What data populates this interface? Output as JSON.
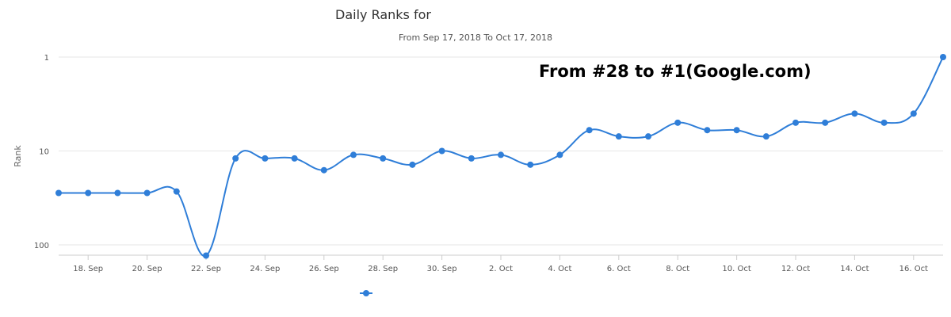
{
  "chart_data": {
    "type": "line",
    "title": "Daily Ranks for",
    "subtitle": "From Sep 17, 2018 To Oct 17, 2018",
    "ylabel": "Rank",
    "xlabel": "",
    "y_scale": "log",
    "y_reversed": true,
    "ylim": [
      1,
      100
    ],
    "y_ticks": [
      "1",
      "10",
      "100"
    ],
    "x_ticks": [
      "18. Sep",
      "20. Sep",
      "22. Sep",
      "24. Sep",
      "26. Sep",
      "28. Sep",
      "30. Sep",
      "2. Oct",
      "4. Oct",
      "6. Oct",
      "8. Oct",
      "10. Oct",
      "12. Oct",
      "14. Oct",
      "16. Oct"
    ],
    "x": [
      "2018-09-17",
      "2018-09-18",
      "2018-09-19",
      "2018-09-20",
      "2018-09-21",
      "2018-09-22",
      "2018-09-23",
      "2018-09-24",
      "2018-09-25",
      "2018-09-26",
      "2018-09-27",
      "2018-09-28",
      "2018-09-29",
      "2018-09-30",
      "2018-10-01",
      "2018-10-02",
      "2018-10-03",
      "2018-10-04",
      "2018-10-05",
      "2018-10-06",
      "2018-10-07",
      "2018-10-08",
      "2018-10-09",
      "2018-10-10",
      "2018-10-11",
      "2018-10-12",
      "2018-10-13",
      "2018-10-14",
      "2018-10-15",
      "2018-10-16",
      "2018-10-17"
    ],
    "series": [
      {
        "name": "",
        "color": "#2f7ed8",
        "values": [
          28,
          28,
          28,
          28,
          27,
          130,
          12,
          12,
          12,
          16,
          11,
          12,
          14,
          10,
          12,
          11,
          14,
          11,
          6,
          7,
          7,
          5,
          6,
          6,
          7,
          5,
          5,
          4,
          5,
          4,
          1
        ]
      }
    ],
    "annotations": [
      "From #28 to #1(Google.com)"
    ],
    "legend_position": "bottom-left",
    "grid": true
  }
}
